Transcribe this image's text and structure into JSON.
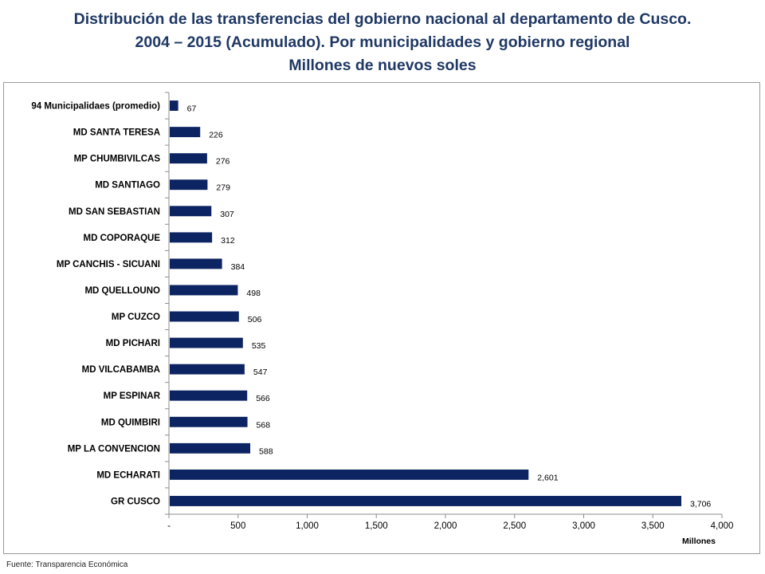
{
  "title": {
    "line1": "Distribución de las transferencias del gobierno nacional al departamento de Cusco.",
    "line2": "2004 – 2015 (Acumulado). Por municipalidades y gobierno regional",
    "line3": "Millones de nuevos soles"
  },
  "source": "Fuente: Transparencia Económica",
  "chart_data": {
    "type": "bar",
    "orientation": "horizontal",
    "categories": [
      "94 Municipalidaes (promedio)",
      "MD SANTA TERESA",
      "MP CHUMBIVILCAS",
      "MD SANTIAGO",
      "MD SAN SEBASTIAN",
      "MD COPORAQUE",
      "MP CANCHIS - SICUANI",
      "MD QUELLOUNO",
      "MP CUZCO",
      "MD PICHARI",
      "MD VILCABAMBA",
      "MP ESPINAR",
      "MD QUIMBIRI",
      "MP LA CONVENCION",
      "MD ECHARATI",
      "GR CUSCO"
    ],
    "values": [
      67,
      226,
      276,
      279,
      307,
      312,
      384,
      498,
      506,
      535,
      547,
      566,
      568,
      588,
      2601,
      3706
    ],
    "value_labels": [
      "67",
      "226",
      "276",
      "279",
      "307",
      "312",
      "384",
      "498",
      "506",
      "535",
      "547",
      "566",
      "568",
      "588",
      "2,601",
      "3,706"
    ],
    "x_ticks": [
      0,
      500,
      1000,
      1500,
      2000,
      2500,
      3000,
      3500,
      4000
    ],
    "x_tick_labels": [
      "-",
      "500",
      "1,000",
      "1,500",
      "2,000",
      "2,500",
      "3,000",
      "3,500",
      "4,000"
    ],
    "xlim": [
      0,
      4000
    ],
    "xlabel": "Millones",
    "title": "",
    "ylabel": "",
    "grid": false,
    "legend": "none",
    "bar_color": "#0c2461"
  }
}
